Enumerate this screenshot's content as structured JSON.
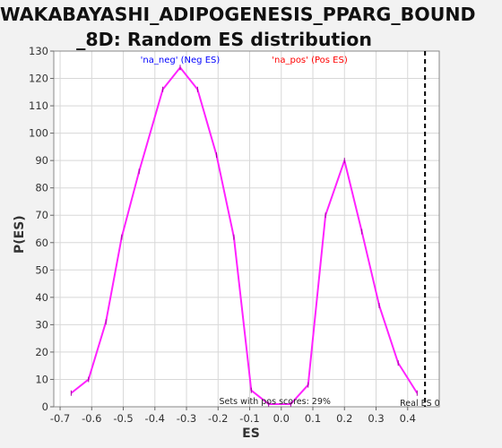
{
  "title_lines": [
    "WAKABAYASHI_ADIPOGENESIS_PPARG_BOUND",
    "_8D: Random ES distribution"
  ],
  "chart_data": {
    "type": "line",
    "title": "WAKABAYASHI_ADIPOGENESIS_PPARG_BOUND_8D: Random ES distribution",
    "xlabel": "ES",
    "ylabel": "P(ES)",
    "xlim": [
      -0.72,
      0.5
    ],
    "ylim": [
      0,
      130
    ],
    "x_ticks": [
      -0.7,
      -0.6,
      -0.5,
      -0.4,
      -0.3,
      -0.2,
      -0.1,
      0.0,
      0.1,
      0.2,
      0.3,
      0.4
    ],
    "x_tick_labels": [
      "-0.7",
      "-0.6",
      "-0.5",
      "-0.4",
      "-0.3",
      "-0.2",
      "-0.1",
      "0.0",
      "0.1",
      "0.2",
      "0.3",
      "0.4"
    ],
    "y_ticks": [
      0,
      10,
      20,
      30,
      40,
      50,
      60,
      70,
      80,
      90,
      100,
      110,
      120,
      130
    ],
    "grid": true,
    "legend": [
      {
        "label": "'na_neg' (Neg ES)",
        "color": "#0000ff"
      },
      {
        "label": "'na_pos' (Pos ES)",
        "color": "#ff0000"
      }
    ],
    "series": [
      {
        "color": "#ff22ff",
        "x": [
          -0.665,
          -0.61,
          -0.555,
          -0.505,
          -0.45,
          -0.375,
          -0.32,
          -0.265,
          -0.205,
          -0.15,
          -0.095,
          -0.04,
          0.03,
          0.085,
          0.14,
          0.2,
          0.255,
          0.31,
          0.37,
          0.43
        ],
        "y": [
          5,
          10,
          31,
          62,
          86,
          116,
          124,
          116,
          92,
          62,
          6,
          1,
          1,
          8,
          70,
          90,
          64,
          37,
          16,
          5
        ]
      }
    ],
    "real_es": {
      "x": 0.455,
      "label": "Real ES 0"
    },
    "annotation": "Sets with pos scores: 29%"
  }
}
